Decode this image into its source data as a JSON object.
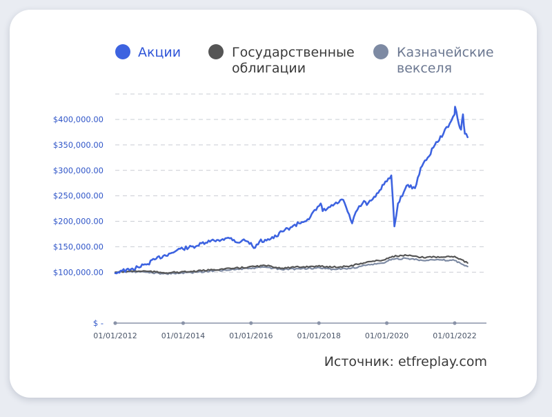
{
  "chart_data": {
    "type": "line",
    "source": "Источник: etfreplay.com",
    "y_tick_labels": [
      "$ -",
      "$100,000.00",
      "$150,000.00",
      "$200,000.00",
      "$250,000.00",
      "$300,000.00",
      "$350,000.00",
      "$400,000.00"
    ],
    "y_ticks": [
      0,
      100000,
      150000,
      200000,
      250000,
      300000,
      350000,
      400000
    ],
    "ylim": [
      0,
      450000
    ],
    "x_tick_labels": [
      "01/01/2012",
      "01/01/2014",
      "01/01/2016",
      "01/01/2018",
      "01/01/2020",
      "01/01/2022"
    ],
    "x_ticks": [
      "2012-01-01",
      "2014-01-01",
      "2016-01-01",
      "2018-01-01",
      "2020-01-01",
      "2022-01-01"
    ],
    "xlim": [
      "2012-01-01",
      "2022-06-01"
    ],
    "grid": true,
    "legend_position": "top",
    "series": [
      {
        "name": "Акции",
        "legend_lines": [
          "Акции"
        ],
        "color": "#3d63e0",
        "points": [
          [
            "2012-01-01",
            98000
          ],
          [
            "2012-03-01",
            103000
          ],
          [
            "2012-06-01",
            104000
          ],
          [
            "2012-09-01",
            110000
          ],
          [
            "2012-12-01",
            115000
          ],
          [
            "2013-03-01",
            125000
          ],
          [
            "2013-06-01",
            132000
          ],
          [
            "2013-09-01",
            138000
          ],
          [
            "2013-12-01",
            146000
          ],
          [
            "2014-03-01",
            148000
          ],
          [
            "2014-06-01",
            152000
          ],
          [
            "2014-09-01",
            158000
          ],
          [
            "2014-12-01",
            162000
          ],
          [
            "2015-03-01",
            165000
          ],
          [
            "2015-06-01",
            167000
          ],
          [
            "2015-08-15",
            158000
          ],
          [
            "2015-10-01",
            163000
          ],
          [
            "2015-12-01",
            160000
          ],
          [
            "2016-02-15",
            148000
          ],
          [
            "2016-04-01",
            160000
          ],
          [
            "2016-07-01",
            165000
          ],
          [
            "2016-10-01",
            170000
          ],
          [
            "2016-12-01",
            180000
          ],
          [
            "2017-03-01",
            188000
          ],
          [
            "2017-06-01",
            196000
          ],
          [
            "2017-09-01",
            204000
          ],
          [
            "2017-12-01",
            222000
          ],
          [
            "2018-01-20",
            235000
          ],
          [
            "2018-02-10",
            220000
          ],
          [
            "2018-05-01",
            228000
          ],
          [
            "2018-09-20",
            242000
          ],
          [
            "2018-12-24",
            196000
          ],
          [
            "2019-02-01",
            218000
          ],
          [
            "2019-05-01",
            240000
          ],
          [
            "2019-06-01",
            232000
          ],
          [
            "2019-09-01",
            248000
          ],
          [
            "2019-12-01",
            272000
          ],
          [
            "2020-02-19",
            290000
          ],
          [
            "2020-03-23",
            190000
          ],
          [
            "2020-05-01",
            235000
          ],
          [
            "2020-08-01",
            270000
          ],
          [
            "2020-10-30",
            265000
          ],
          [
            "2020-12-31",
            305000
          ],
          [
            "2021-03-01",
            320000
          ],
          [
            "2021-06-01",
            350000
          ],
          [
            "2021-09-01",
            372000
          ],
          [
            "2021-12-31",
            410000
          ],
          [
            "2022-01-05",
            425000
          ],
          [
            "2022-02-15",
            390000
          ],
          [
            "2022-03-10",
            380000
          ],
          [
            "2022-03-31",
            410000
          ],
          [
            "2022-04-20",
            372000
          ],
          [
            "2022-05-20",
            365000
          ]
        ]
      },
      {
        "name": "Государственные облигации",
        "legend_lines": [
          "Государственные",
          "облигации"
        ],
        "color": "#555555",
        "points": [
          [
            "2012-01-01",
            100000
          ],
          [
            "2012-06-01",
            102000
          ],
          [
            "2012-12-01",
            102000
          ],
          [
            "2013-06-01",
            99000
          ],
          [
            "2013-12-01",
            100000
          ],
          [
            "2014-06-01",
            102000
          ],
          [
            "2014-12-01",
            105000
          ],
          [
            "2015-06-01",
            107000
          ],
          [
            "2015-12-01",
            110000
          ],
          [
            "2016-06-01",
            113000
          ],
          [
            "2016-12-01",
            108000
          ],
          [
            "2017-06-01",
            110000
          ],
          [
            "2017-12-01",
            112000
          ],
          [
            "2018-06-01",
            110000
          ],
          [
            "2018-12-01",
            112000
          ],
          [
            "2019-06-01",
            120000
          ],
          [
            "2019-12-01",
            124000
          ],
          [
            "2020-03-01",
            131000
          ],
          [
            "2020-08-01",
            133000
          ],
          [
            "2020-12-31",
            129000
          ],
          [
            "2021-06-01",
            130000
          ],
          [
            "2021-12-31",
            131000
          ],
          [
            "2022-03-01",
            126000
          ],
          [
            "2022-05-20",
            118000
          ]
        ]
      },
      {
        "name": "Казначейские векселя",
        "legend_lines": [
          "Казначейские",
          "векселя"
        ],
        "color": "#7d8aa3",
        "points": [
          [
            "2012-01-01",
            100000
          ],
          [
            "2012-06-01",
            101000
          ],
          [
            "2012-12-01",
            100000
          ],
          [
            "2013-06-01",
            97000
          ],
          [
            "2013-12-01",
            98000
          ],
          [
            "2014-06-01",
            100000
          ],
          [
            "2014-12-01",
            103000
          ],
          [
            "2015-06-01",
            105000
          ],
          [
            "2015-12-01",
            107000
          ],
          [
            "2016-06-01",
            110000
          ],
          [
            "2016-12-01",
            105000
          ],
          [
            "2017-06-01",
            107000
          ],
          [
            "2017-12-01",
            108000
          ],
          [
            "2018-06-01",
            106000
          ],
          [
            "2018-12-01",
            107000
          ],
          [
            "2019-06-01",
            114000
          ],
          [
            "2019-12-01",
            118000
          ],
          [
            "2020-03-01",
            126000
          ],
          [
            "2020-08-01",
            127000
          ],
          [
            "2020-12-31",
            124000
          ],
          [
            "2021-06-01",
            124000
          ],
          [
            "2021-12-31",
            123000
          ],
          [
            "2022-03-01",
            118000
          ],
          [
            "2022-05-20",
            111000
          ]
        ]
      }
    ]
  }
}
